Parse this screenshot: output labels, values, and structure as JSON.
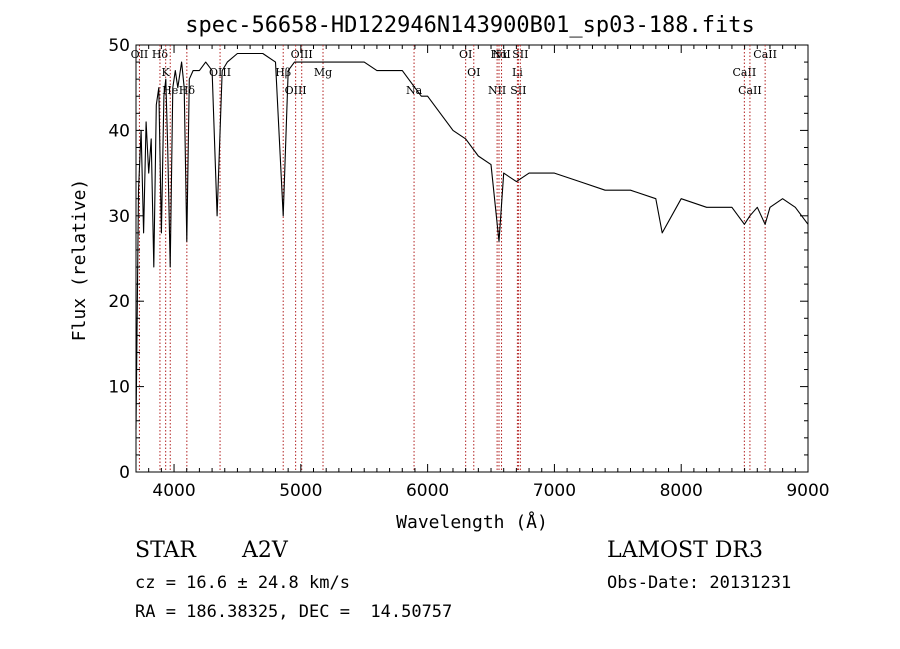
{
  "chart_data": {
    "type": "line",
    "title": "spec-56658-HD122946N143900B01_sp03-188.fits",
    "xlabel": "Wavelength (Å)",
    "ylabel": "Flux (relative)",
    "xlim": [
      3700,
      9000
    ],
    "ylim": [
      0,
      50
    ],
    "x_ticks": [
      4000,
      5000,
      6000,
      7000,
      8000,
      9000
    ],
    "y_ticks": [
      0,
      10,
      20,
      30,
      40,
      50
    ],
    "grid": false,
    "series": [
      {
        "x": [
          3700,
          3720,
          3740,
          3760,
          3780,
          3800,
          3820,
          3840,
          3860,
          3880,
          3900,
          3920,
          3935,
          3950,
          3970,
          3990,
          4010,
          4030,
          4060,
          4080,
          4101,
          4120,
          4150,
          4200,
          4250,
          4300,
          4340,
          4380,
          4420,
          4500,
          4600,
          4700,
          4800,
          4861,
          4900,
          4950,
          5000,
          5100,
          5200,
          5300,
          5400,
          5500,
          5600,
          5700,
          5800,
          5900,
          5950,
          6000,
          6100,
          6200,
          6300,
          6400,
          6500,
          6563,
          6600,
          6700,
          6800,
          7000,
          7200,
          7400,
          7600,
          7800,
          7850,
          8000,
          8200,
          8300,
          8400,
          8498,
          8542,
          8600,
          8662,
          8700,
          8800,
          8900,
          9000
        ],
        "y": [
          5,
          33,
          40,
          28,
          41,
          35,
          39,
          24,
          43,
          45,
          28,
          44,
          46,
          38,
          24,
          45,
          47,
          45,
          48,
          45,
          27,
          46,
          47,
          47,
          48,
          47,
          30,
          47,
          48,
          49,
          49,
          49,
          48,
          30,
          47,
          48,
          48,
          48,
          48,
          48,
          48,
          48,
          47,
          47,
          47,
          45,
          44,
          44,
          42,
          40,
          39,
          37,
          36,
          27,
          35,
          34,
          35,
          35,
          34,
          33,
          33,
          32,
          28,
          32,
          31,
          31,
          31,
          29,
          30,
          31,
          29,
          31,
          32,
          31,
          29
        ]
      }
    ],
    "annotations": [
      {
        "label": "Hα",
        "x": 6563
      },
      {
        "label": "Hβ",
        "x": 4861
      },
      {
        "label": "Hδ",
        "x": 4101
      },
      {
        "label": "Hδ",
        "x": 3889
      },
      {
        "label": "K",
        "x": 3934
      },
      {
        "label": "He",
        "x": 3970
      },
      {
        "label": "OII",
        "x": 3727
      },
      {
        "label": "OIII",
        "x": 4363
      },
      {
        "label": "OIII",
        "x": 4959
      },
      {
        "label": "OIII",
        "x": 5007
      },
      {
        "label": "Mg",
        "x": 5175
      },
      {
        "label": "Na",
        "x": 5893
      },
      {
        "label": "OI",
        "x": 6300
      },
      {
        "label": "OI",
        "x": 6364
      },
      {
        "label": "NII",
        "x": 6548
      },
      {
        "label": "NII",
        "x": 6583
      },
      {
        "label": "Li",
        "x": 6708
      },
      {
        "label": "SII",
        "x": 6716
      },
      {
        "label": "SII",
        "x": 6731
      },
      {
        "label": "CaII",
        "x": 8498
      },
      {
        "label": "CaII",
        "x": 8542
      },
      {
        "label": "CaII",
        "x": 8662
      }
    ]
  },
  "info": {
    "object_class": "STAR",
    "subclass": "A2V",
    "survey": "LAMOST DR3",
    "redshift": "cz = 16.6 ± 24.8 km/s",
    "obs_date": "Obs-Date: 20131231",
    "coords": "RA = 186.38325, DEC =  14.50757"
  }
}
